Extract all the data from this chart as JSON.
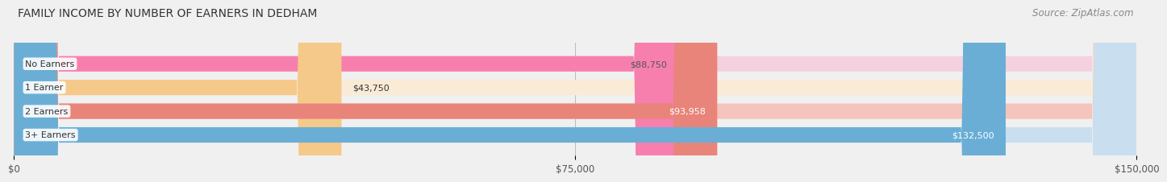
{
  "title": "FAMILY INCOME BY NUMBER OF EARNERS IN DEDHAM",
  "source": "Source: ZipAtlas.com",
  "categories": [
    "No Earners",
    "1 Earner",
    "2 Earners",
    "3+ Earners"
  ],
  "values": [
    88750,
    43750,
    93958,
    132500
  ],
  "bar_colors": [
    "#f77fae",
    "#f5c98a",
    "#e8847a",
    "#6aaed6"
  ],
  "bar_bg_colors": [
    "#f5d0de",
    "#faebd7",
    "#f5c4bc",
    "#c9dff0"
  ],
  "label_colors": [
    "#555555",
    "#555555",
    "#ffffff",
    "#ffffff"
  ],
  "value_labels": [
    "$88,750",
    "$43,750",
    "$93,958",
    "$132,500"
  ],
  "xlim": [
    0,
    150000
  ],
  "xticks": [
    0,
    75000,
    150000
  ],
  "xtick_labels": [
    "$0",
    "$75,000",
    "$150,000"
  ],
  "background_color": "#f0f0f0",
  "title_fontsize": 10,
  "source_fontsize": 8.5
}
